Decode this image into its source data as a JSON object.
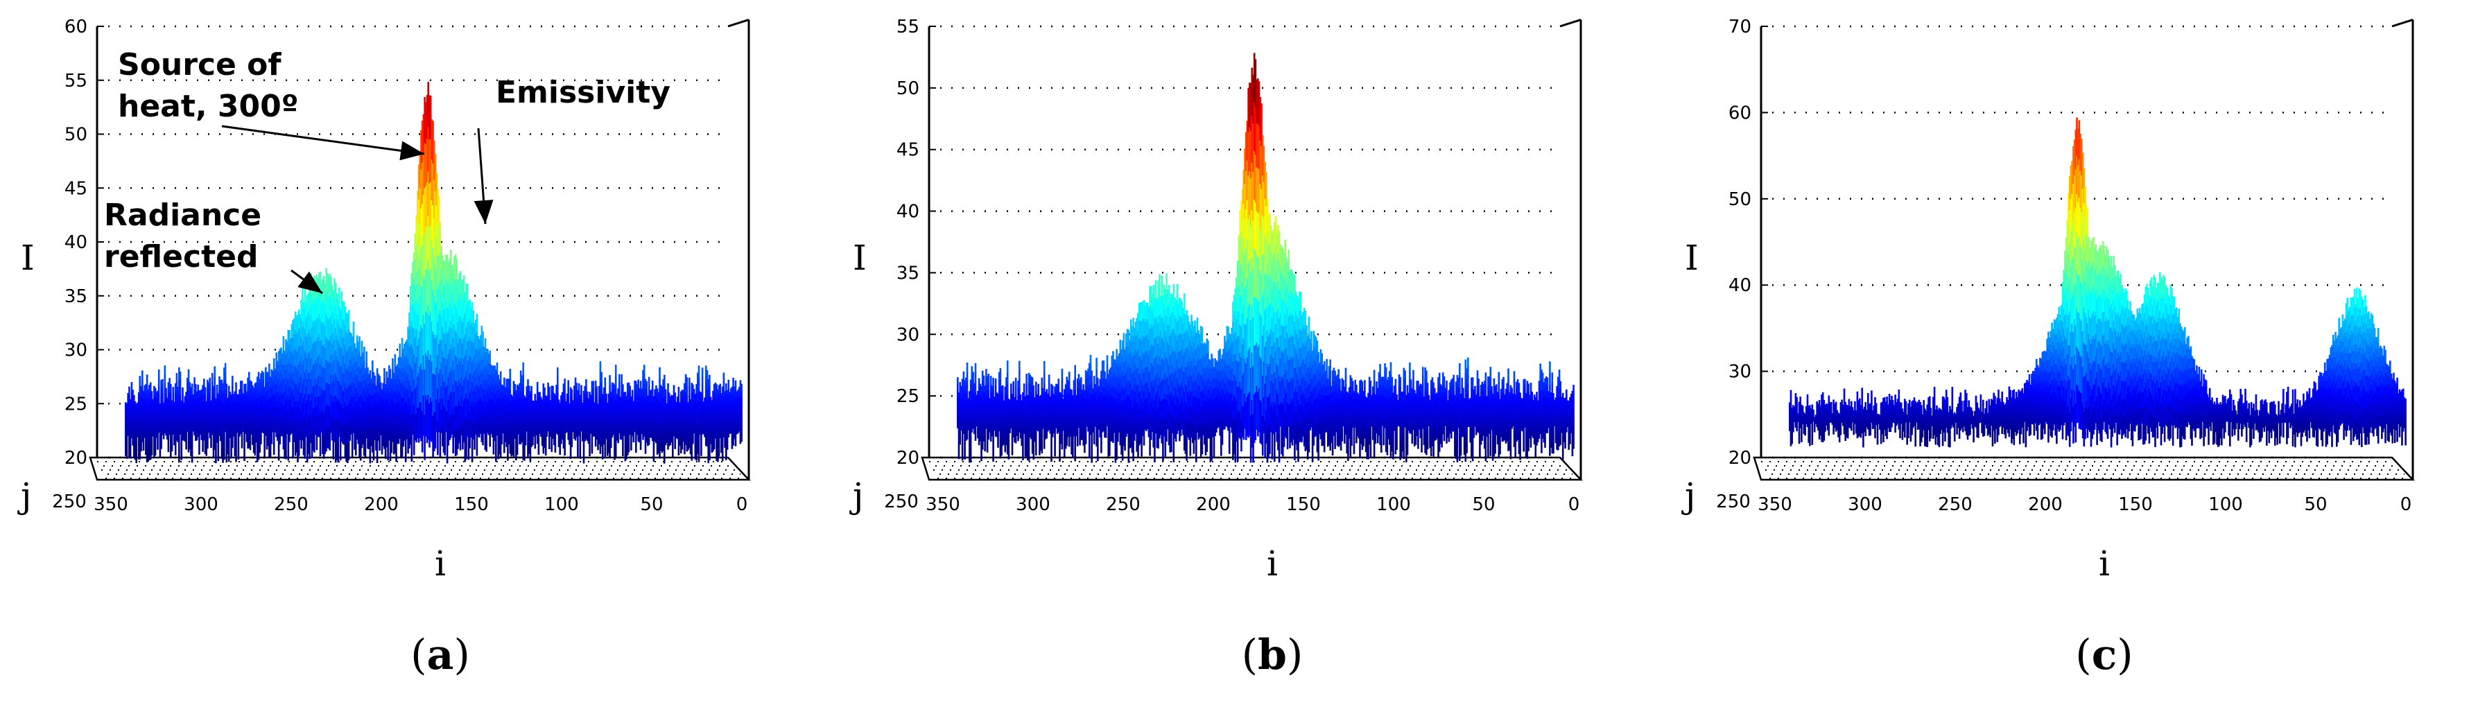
{
  "chart_data": [
    {
      "type": "surface3d",
      "caption_letter": "a",
      "zlabel": "I",
      "xlabel": "i",
      "ylabel": "j",
      "z_ticks": [
        20,
        25,
        30,
        35,
        40,
        45,
        50,
        55,
        60
      ],
      "zlim": [
        20,
        60
      ],
      "x_ticks": [
        "350",
        "300",
        "250",
        "200",
        "150",
        "100",
        "50",
        "0"
      ],
      "y_tick": "250",
      "xlim": [
        350,
        0
      ],
      "base_level": 27,
      "base_low": 22,
      "peaks": [
        {
          "x": 167,
          "height": 55,
          "width": 9
        },
        {
          "x": 158,
          "height": 40,
          "width": 22
        },
        {
          "x": 226,
          "height": 38,
          "width": 22
        }
      ],
      "annotations": [
        {
          "lines": [
            "Source of",
            "heat, 300º"
          ],
          "target_x": 172,
          "target_z": 50
        },
        {
          "lines": [
            "Emissivity"
          ],
          "target_x": 150,
          "target_z": 41
        },
        {
          "lines": [
            "Radiance",
            "reflected"
          ],
          "target_x": 228,
          "target_z": 36
        }
      ]
    },
    {
      "type": "surface3d",
      "caption_letter": "b",
      "zlabel": "I",
      "xlabel": "i",
      "ylabel": "j",
      "z_ticks": [
        20,
        25,
        30,
        35,
        40,
        45,
        50,
        55
      ],
      "zlim": [
        20,
        55
      ],
      "x_ticks": [
        "350",
        "300",
        "250",
        "200",
        "150",
        "100",
        "50",
        "0"
      ],
      "y_tick": "250",
      "xlim": [
        350,
        0
      ],
      "base_level": 26.5,
      "base_low": 22,
      "peaks": [
        {
          "x": 170,
          "height": 53,
          "width": 10
        },
        {
          "x": 162,
          "height": 40,
          "width": 22
        },
        {
          "x": 220,
          "height": 35,
          "width": 25
        }
      ],
      "annotations": []
    },
    {
      "type": "surface3d",
      "caption_letter": "c",
      "zlabel": "I",
      "xlabel": "i",
      "ylabel": "j",
      "z_ticks": [
        20,
        30,
        40,
        50,
        60,
        70
      ],
      "zlim": [
        20,
        70
      ],
      "x_ticks": [
        "350",
        "300",
        "250",
        "200",
        "150",
        "100",
        "50",
        "0"
      ],
      "y_tick": "250",
      "xlim": [
        350,
        0
      ],
      "base_level": 27,
      "base_low": 24,
      "peaks": [
        {
          "x": 175,
          "height": 60,
          "width": 9
        },
        {
          "x": 165,
          "height": 46,
          "width": 28
        },
        {
          "x": 130,
          "height": 42,
          "width": 20
        },
        {
          "x": 20,
          "height": 40,
          "width": 18
        }
      ],
      "annotations": []
    }
  ]
}
